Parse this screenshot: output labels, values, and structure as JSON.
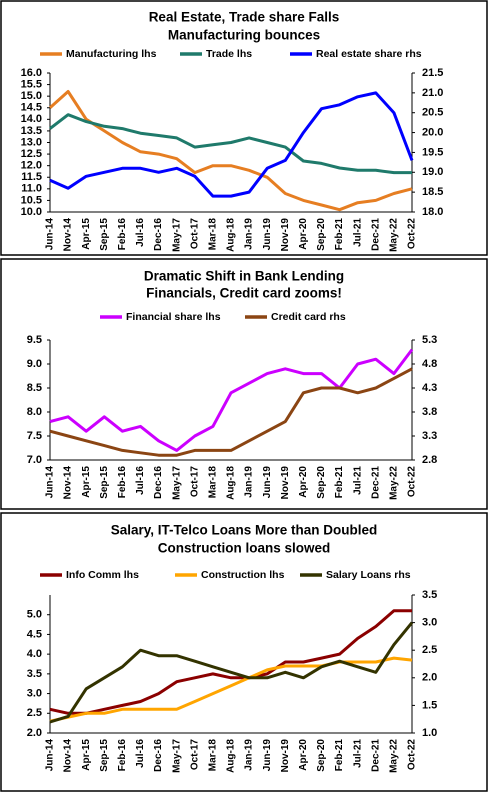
{
  "chart_data": [
    {
      "type": "line",
      "title": "Real Estate, Trade share Falls",
      "subtitle": "Manufacturing bounces",
      "categories": [
        "Jun-14",
        "Nov-14",
        "Apr-15",
        "Sep-15",
        "Feb-16",
        "Jul-16",
        "Dec-16",
        "May-17",
        "Oct-17",
        "Mar-18",
        "Aug-18",
        "Jan-19",
        "Jun-19",
        "Nov-19",
        "Apr-20",
        "Sep-20",
        "Feb-21",
        "Jul-21",
        "Dec-21",
        "May-22",
        "Oct-22"
      ],
      "series": [
        {
          "name": "Manufacturing lhs",
          "color": "#e67e22",
          "values": [
            14.5,
            15.2,
            14.0,
            13.5,
            13.0,
            12.6,
            12.5,
            12.3,
            11.7,
            12.0,
            12.0,
            11.8,
            11.5,
            10.8,
            10.5,
            10.3,
            10.1,
            10.4,
            10.5,
            10.8,
            11.0
          ]
        },
        {
          "name": "Trade lhs",
          "color": "#1f7a6b",
          "values": [
            13.6,
            14.2,
            13.9,
            13.7,
            13.6,
            13.4,
            13.3,
            13.2,
            12.8,
            12.9,
            13.0,
            13.2,
            13.0,
            12.8,
            12.2,
            12.1,
            11.9,
            11.8,
            11.8,
            11.7,
            11.7
          ]
        },
        {
          "name": "Real estate share rhs",
          "color": "#0000ff",
          "axis": "y2",
          "values": [
            18.8,
            18.6,
            18.9,
            19.0,
            19.1,
            19.1,
            19.0,
            19.1,
            18.9,
            18.4,
            18.4,
            18.5,
            19.1,
            19.3,
            20.0,
            20.6,
            20.7,
            20.9,
            21.0,
            20.5,
            19.3
          ]
        }
      ],
      "ylim": [
        10,
        16
      ],
      "yticks": [
        {
          "value": 10,
          "label": "10.0"
        },
        10.5,
        {
          "value": 11,
          "label": "11.0"
        },
        11.5,
        {
          "value": 12,
          "label": "12.0"
        },
        12.5,
        {
          "value": 13,
          "label": "13.0"
        },
        13.5,
        {
          "value": 14,
          "label": "14.0"
        },
        14.5,
        {
          "value": 15,
          "label": "15.0"
        },
        15.5,
        {
          "value": 16,
          "label": "16.0"
        }
      ],
      "y2lim": [
        18,
        21.5
      ],
      "y2ticks": [
        {
          "value": 18,
          "label": "18.0"
        },
        18.5,
        {
          "value": 19,
          "label": "19.0"
        },
        19.5,
        {
          "value": 20,
          "label": "20.0"
        },
        20.5,
        {
          "value": 21,
          "label": "21.0"
        },
        21.5
      ]
    },
    {
      "type": "line",
      "title": "Dramatic Shift in Bank Lending",
      "subtitle": "Financials, Credit card zooms!",
      "categories": [
        "Jun-14",
        "Nov-14",
        "Apr-15",
        "Sep-15",
        "Feb-16",
        "Jul-16",
        "Dec-16",
        "May-17",
        "Oct-17",
        "Mar-18",
        "Aug-18",
        "Jan-19",
        "Jun-19",
        "Nov-19",
        "Apr-20",
        "Sep-20",
        "Feb-21",
        "Jul-21",
        "Dec-21",
        "May-22",
        "Oct-22"
      ],
      "series": [
        {
          "name": "Financial share lhs",
          "color": "#cc00ff",
          "values": [
            7.8,
            7.9,
            7.6,
            7.9,
            7.6,
            7.7,
            7.4,
            7.2,
            7.5,
            7.7,
            8.4,
            8.6,
            8.8,
            8.9,
            8.8,
            8.8,
            8.5,
            9.0,
            9.1,
            8.8,
            9.3
          ]
        },
        {
          "name": "Credit card rhs",
          "color": "#8b4513",
          "axis": "y2",
          "values": [
            3.4,
            3.3,
            3.2,
            3.1,
            3.0,
            2.95,
            2.9,
            2.9,
            3.0,
            3.0,
            3.0,
            3.2,
            3.4,
            3.6,
            4.2,
            4.3,
            4.3,
            4.2,
            4.3,
            4.5,
            4.7
          ]
        }
      ],
      "ylim": [
        7,
        9.5
      ],
      "yticks": [
        {
          "value": 7,
          "label": "7.0"
        },
        7.5,
        {
          "value": 8,
          "label": "8.0"
        },
        8.5,
        {
          "value": 9,
          "label": "9.0"
        },
        9.5
      ],
      "y2lim": [
        2.8,
        5.3
      ],
      "y2ticks": [
        2.8,
        3.3,
        3.8,
        4.3,
        4.8,
        5.3
      ]
    },
    {
      "type": "line",
      "title": "Salary, IT-Telco Loans More than Doubled",
      "subtitle": "Construction loans slowed",
      "categories": [
        "Jun-14",
        "Nov-14",
        "Apr-15",
        "Sep-15",
        "Feb-16",
        "Jul-16",
        "Dec-16",
        "May-17",
        "Oct-17",
        "Mar-18",
        "Aug-18",
        "Jan-19",
        "Jun-19",
        "Nov-19",
        "Apr-20",
        "Sep-20",
        "Feb-21",
        "Jul-21",
        "Dec-21",
        "May-22",
        "Oct-22"
      ],
      "series": [
        {
          "name": "Info Comm lhs",
          "color": "#8b0000",
          "values": [
            2.6,
            2.5,
            2.5,
            2.6,
            2.7,
            2.8,
            3.0,
            3.3,
            3.4,
            3.5,
            3.4,
            3.4,
            3.5,
            3.8,
            3.8,
            3.9,
            4.0,
            4.4,
            4.7,
            5.1,
            5.1
          ]
        },
        {
          "name": "Construction lhs",
          "color": "#ffa500",
          "values": [
            2.3,
            2.4,
            2.5,
            2.5,
            2.6,
            2.6,
            2.6,
            2.6,
            2.8,
            3.0,
            3.2,
            3.4,
            3.6,
            3.7,
            3.7,
            3.7,
            3.8,
            3.8,
            3.8,
            3.9,
            3.85
          ]
        },
        {
          "name": "Salary Loans rhs",
          "color": "#333300",
          "axis": "y2",
          "values": [
            1.2,
            1.3,
            1.8,
            2.0,
            2.2,
            2.5,
            2.4,
            2.4,
            2.3,
            2.2,
            2.1,
            2.0,
            2.0,
            2.1,
            2.0,
            2.2,
            2.3,
            2.2,
            2.1,
            2.6,
            3.0
          ]
        }
      ],
      "ylim": [
        2,
        5.5
      ],
      "yticks": [
        {
          "value": 2,
          "label": "2.0"
        },
        2.5,
        {
          "value": 3,
          "label": "3.0"
        },
        3.5,
        {
          "value": 4,
          "label": "4.0"
        },
        4.5,
        {
          "value": 5,
          "label": "5.0"
        }
      ],
      "y2lim": [
        1,
        3.5
      ],
      "y2ticks": [
        {
          "value": 1,
          "label": "1.0"
        },
        1.5,
        {
          "value": 2,
          "label": "2.0"
        },
        2.5,
        {
          "value": 3,
          "label": "3.0"
        },
        3.5
      ]
    }
  ]
}
